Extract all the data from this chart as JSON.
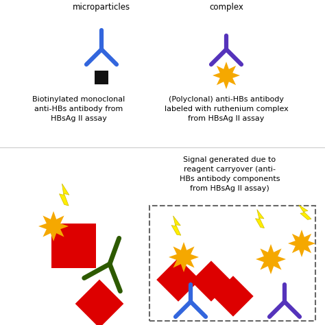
{
  "background_color": "#ffffff",
  "text_left_antibody": "Biotinylated monoclonal\nanti-HBs antibody from\nHBsAg II assay",
  "text_right_antibody": "(Polyclonal) anti-HBs antibody\nlabeled with ruthenium complex\nfrom HBsAg II assay",
  "text_signal": "Signal generated due to\nreagent carryover (anti-\nHBs antibody components\nfrom HBsAg II assay)",
  "blue_color": "#3366dd",
  "purple_color": "#5533bb",
  "dark_green_color": "#2d5a00",
  "black_color": "#111111",
  "orange_color": "#f5a800",
  "red_color": "#dd0000",
  "yellow_color": "#ffee00",
  "dashed_color": "#666666",
  "label_top_left": "microparticles",
  "label_top_right": "complex"
}
